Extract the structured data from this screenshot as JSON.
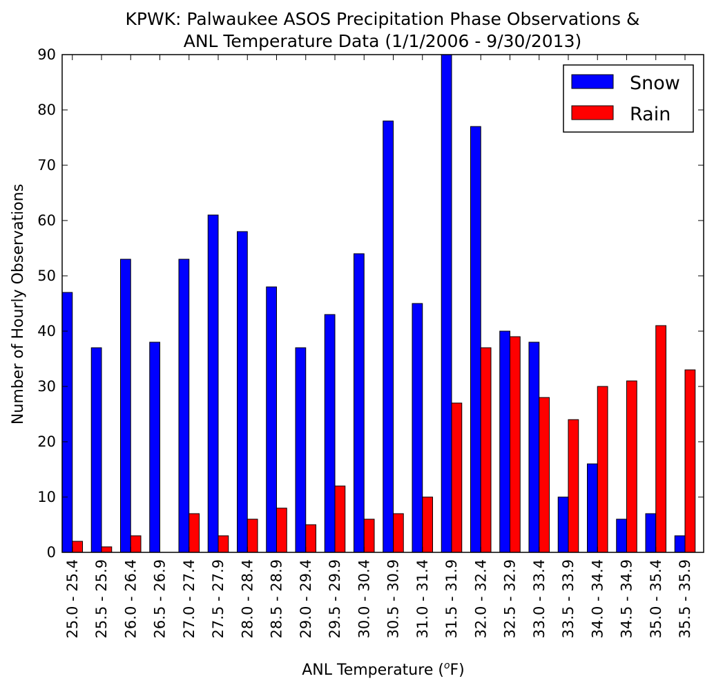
{
  "chart_data": {
    "type": "bar",
    "title": "KPWK: Palwaukee ASOS Precipitation Phase Observations &",
    "subtitle": "ANL Temperature Data (1/1/2006 - 9/30/2013)",
    "xlabel_prefix": "ANL Temperature (",
    "xlabel_sup": "o",
    "xlabel_suffix": "F)",
    "ylabel": "Number of Hourly Observations",
    "ylim": [
      0,
      90
    ],
    "yticks": [
      "0",
      "10",
      "20",
      "30",
      "40",
      "50",
      "60",
      "70",
      "80",
      "90"
    ],
    "categories": [
      "25.0 - 25.4",
      "25.5 - 25.9",
      "26.0 - 26.4",
      "26.5 - 26.9",
      "27.0 - 27.4",
      "27.5 - 27.9",
      "28.0 - 28.4",
      "28.5 - 28.9",
      "29.0 - 29.4",
      "29.5 - 29.9",
      "30.0 - 30.4",
      "30.5 - 30.9",
      "31.0 - 31.4",
      "31.5 - 31.9",
      "32.0 - 32.4",
      "32.5 - 32.9",
      "33.0 - 33.4",
      "33.5 - 33.9",
      "34.0 - 34.4",
      "34.5 - 34.9",
      "35.0 - 35.4",
      "35.5 - 35.9"
    ],
    "series": [
      {
        "name": "Snow",
        "color": "#0000ff",
        "values": [
          47,
          37,
          53,
          38,
          53,
          61,
          58,
          48,
          37,
          43,
          54,
          78,
          45,
          90,
          77,
          40,
          38,
          10,
          16,
          6,
          7,
          3
        ]
      },
      {
        "name": "Rain",
        "color": "#ff0000",
        "values": [
          2,
          1,
          3,
          0,
          7,
          3,
          6,
          8,
          5,
          12,
          6,
          7,
          10,
          27,
          37,
          39,
          28,
          24,
          30,
          31,
          41,
          33
        ]
      }
    ],
    "grid": false,
    "legend_position": "top-right"
  }
}
